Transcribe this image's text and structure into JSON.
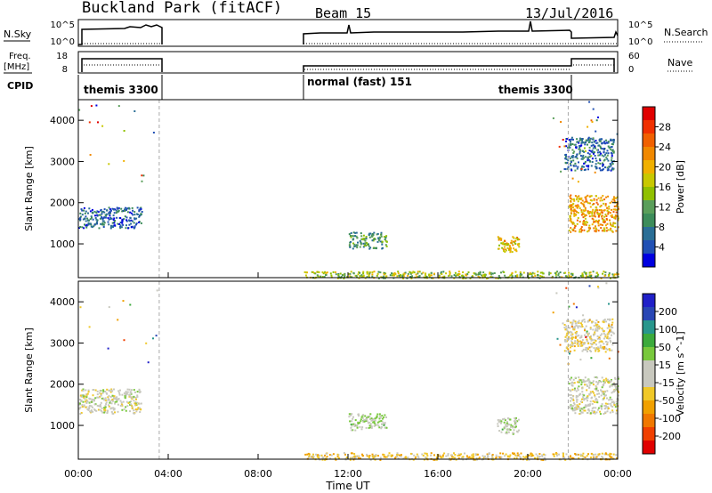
{
  "header": {
    "title": "Buckland Park (fitACF)",
    "beam": "Beam 15",
    "date": "13/Jul/2016"
  },
  "top_panels": {
    "nsky_label": "N.Sky",
    "nsky_ticks": [
      "10^5",
      "10^0"
    ],
    "nsearch_label": "N.Search",
    "nsearch_ticks": [
      "10^5",
      "10^0"
    ],
    "freq_label": "Freq.",
    "freq_unit": "[MHz]",
    "freq_ticks": [
      "18",
      "8"
    ],
    "nave_label": "Nave",
    "nave_ticks": [
      "60",
      "0"
    ],
    "cpid_label": "CPID",
    "cpid_segments": [
      {
        "label": "themis 3300"
      },
      {
        "label": "normal (fast) 151"
      },
      {
        "label": "themis 3300"
      }
    ]
  },
  "colorbar_power": {
    "label": "Power [dB]",
    "ticks": [
      "28",
      "24",
      "20",
      "16",
      "12",
      "8",
      "4"
    ],
    "colors": [
      "#e00000",
      "#f03000",
      "#f06000",
      "#f08800",
      "#f0b000",
      "#c8c800",
      "#90c000",
      "#5a9e5a",
      "#3c8c5a",
      "#2a6e96",
      "#2050b4",
      "#0000e0"
    ]
  },
  "colorbar_velocity": {
    "label": "Velocity [m s^-1]",
    "ticks": [
      "200",
      "100",
      "50",
      "15",
      "-15",
      "-50",
      "-100",
      "-200"
    ],
    "colors": [
      "#2020c8",
      "#2846b4",
      "#28968c",
      "#3caa3c",
      "#78c83c",
      "#c8c8be",
      "#c8c8be",
      "#f0c828",
      "#f0a000",
      "#f07800",
      "#f04000",
      "#e00000"
    ]
  },
  "chart_data": [
    {
      "type": "heatmap",
      "name": "power",
      "ylabel": "Slant Range [km]",
      "xlabel": "Time UT",
      "x_ticks": [
        "00:00",
        "04:00",
        "08:00",
        "12:00",
        "16:00",
        "20:00",
        "00:00"
      ],
      "x_range_hours": [
        0,
        24
      ],
      "y_ticks": [
        1000,
        2000,
        3000,
        4000
      ],
      "y_range_km": [
        180,
        4500
      ],
      "colorbar_range_db": [
        0,
        30
      ],
      "scatter_regions": [
        {
          "t0": 0.0,
          "t1": 2.8,
          "r0": 1400,
          "r1": 1900,
          "value": 5
        },
        {
          "t0": 10.0,
          "t1": 24.0,
          "r0": 180,
          "r1": 350,
          "value": 14
        },
        {
          "t0": 12.0,
          "t1": 13.7,
          "r0": 900,
          "r1": 1300,
          "value": 10
        },
        {
          "t0": 18.6,
          "t1": 19.6,
          "r0": 800,
          "r1": 1200,
          "value": 18
        },
        {
          "t0": 21.8,
          "t1": 24.0,
          "r0": 1300,
          "r1": 2200,
          "value": 20
        },
        {
          "t0": 21.6,
          "t1": 23.8,
          "r0": 2800,
          "r1": 3600,
          "value": 6
        }
      ]
    },
    {
      "type": "heatmap",
      "name": "velocity",
      "ylabel": "Slant Range [km]",
      "xlabel": "Time UT",
      "x_ticks": [
        "00:00",
        "04:00",
        "08:00",
        "12:00",
        "16:00",
        "20:00",
        "00:00"
      ],
      "x_range_hours": [
        0,
        24
      ],
      "y_ticks": [
        1000,
        2000,
        3000,
        4000
      ],
      "y_range_km": [
        180,
        4500
      ],
      "colorbar_range_ms": [
        -250,
        250
      ],
      "scatter_regions": [
        {
          "t0": 0.0,
          "t1": 2.8,
          "r0": 1300,
          "r1": 1900,
          "value": 0
        },
        {
          "t0": 10.0,
          "t1": 24.0,
          "r0": 180,
          "r1": 350,
          "value": -60
        },
        {
          "t0": 12.0,
          "t1": 13.7,
          "r0": 900,
          "r1": 1300,
          "value": 30
        },
        {
          "t0": 18.6,
          "t1": 19.6,
          "r0": 800,
          "r1": 1200,
          "value": 30
        },
        {
          "t0": 21.8,
          "t1": 24.0,
          "r0": 1300,
          "r1": 2200,
          "value": 0
        },
        {
          "t0": 21.6,
          "t1": 23.8,
          "r0": 2800,
          "r1": 3600,
          "value": -30
        }
      ]
    }
  ]
}
